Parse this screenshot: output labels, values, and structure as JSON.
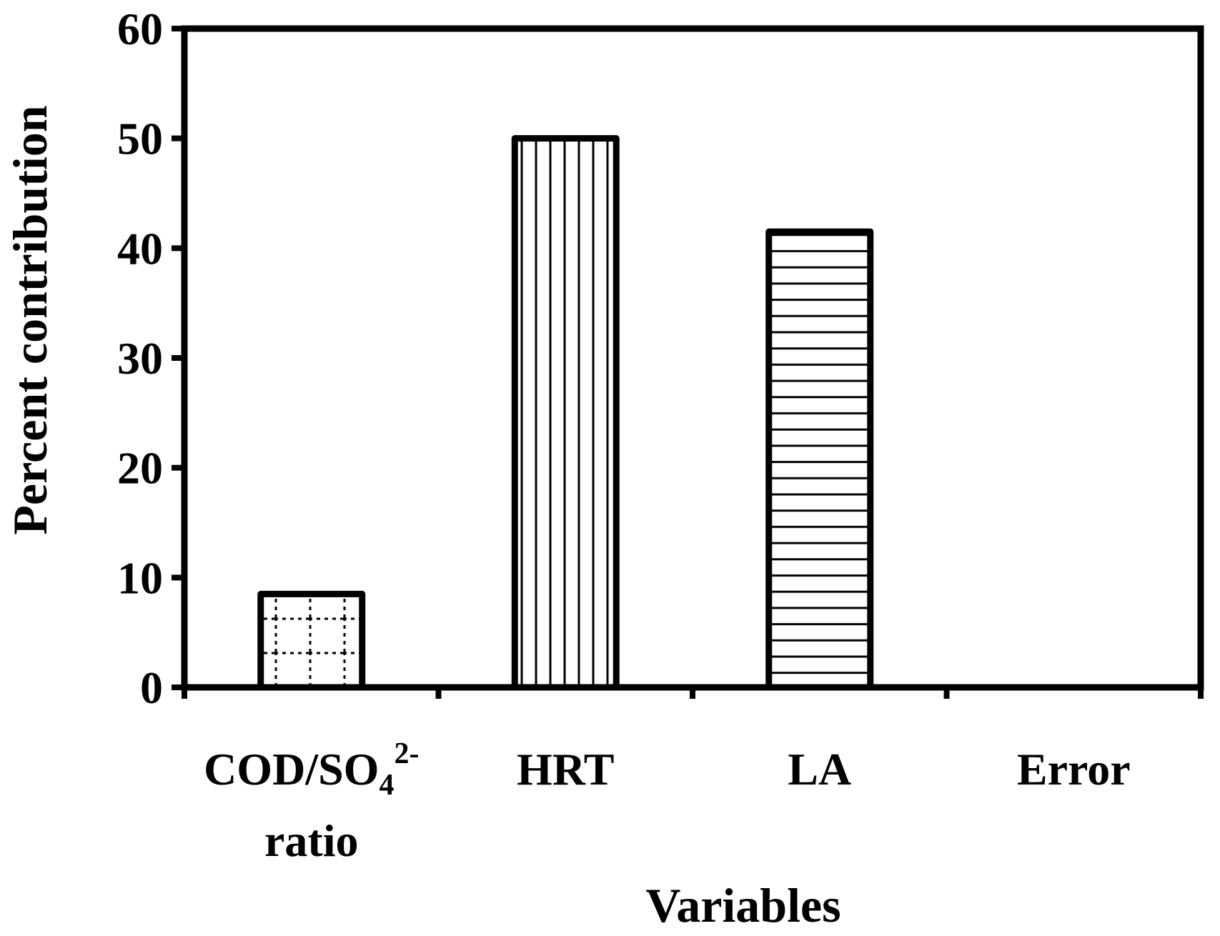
{
  "chart_data": {
    "type": "bar",
    "title": "",
    "xlabel": "Variables",
    "ylabel": "Percent contribution",
    "ylim": [
      0,
      60
    ],
    "yticks": [
      "0",
      "10",
      "20",
      "30",
      "40",
      "50",
      "60"
    ],
    "categories": [
      {
        "main": "COD/SO",
        "sub": "4",
        "sup": "2-",
        "line2": "ratio"
      },
      {
        "main": "HRT",
        "sub": "",
        "sup": "",
        "line2": ""
      },
      {
        "main": "LA",
        "sub": "",
        "sup": "",
        "line2": ""
      },
      {
        "main": "Error",
        "sub": "",
        "sup": "",
        "line2": ""
      }
    ],
    "values": [
      8.5,
      50,
      41.5,
      0
    ],
    "patterns": [
      "dotted-grid",
      "vertical-lines",
      "horizontal-lines",
      "none"
    ],
    "grid": false,
    "legend": "none"
  },
  "colors": {
    "axis": "#000000",
    "bar_fill": "#ffffff",
    "bar_stroke": "#000000"
  }
}
